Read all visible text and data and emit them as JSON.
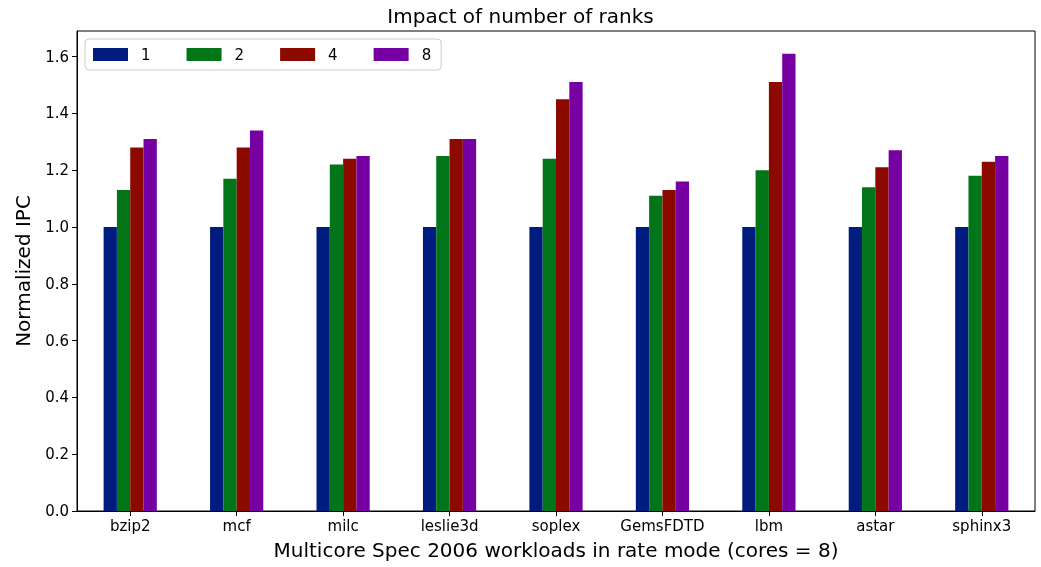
{
  "chart_data": {
    "type": "bar",
    "title": "Impact of number of ranks",
    "xlabel": "Multicore Spec 2006 workloads in rate mode (cores = 8)",
    "ylabel": "Normalized IPC",
    "categories": [
      "bzip2",
      "mcf",
      "milc",
      "leslie3d",
      "soplex",
      "GemsFDTD",
      "lbm",
      "astar",
      "sphinx3"
    ],
    "series": [
      {
        "name": "1",
        "color": "#001c7f",
        "values": [
          1.0,
          1.0,
          1.0,
          1.0,
          1.0,
          1.0,
          1.0,
          1.0,
          1.0
        ]
      },
      {
        "name": "2",
        "color": "#017517",
        "values": [
          1.13,
          1.17,
          1.22,
          1.25,
          1.24,
          1.11,
          1.2,
          1.14,
          1.18
        ]
      },
      {
        "name": "4",
        "color": "#8c0900",
        "values": [
          1.28,
          1.28,
          1.24,
          1.31,
          1.45,
          1.13,
          1.51,
          1.21,
          1.23
        ]
      },
      {
        "name": "8",
        "color": "#7600a1",
        "values": [
          1.31,
          1.34,
          1.25,
          1.31,
          1.51,
          1.16,
          1.61,
          1.27,
          1.25
        ]
      }
    ],
    "ylim": [
      0,
      1.69
    ],
    "yticks": [
      {
        "value": 0,
        "label": "0.0"
      },
      0.2,
      0.4,
      0.6,
      0.8,
      {
        "value": 1,
        "label": "1.0"
      },
      1.2,
      1.4,
      1.6
    ],
    "grid": false,
    "legend": "top left"
  }
}
